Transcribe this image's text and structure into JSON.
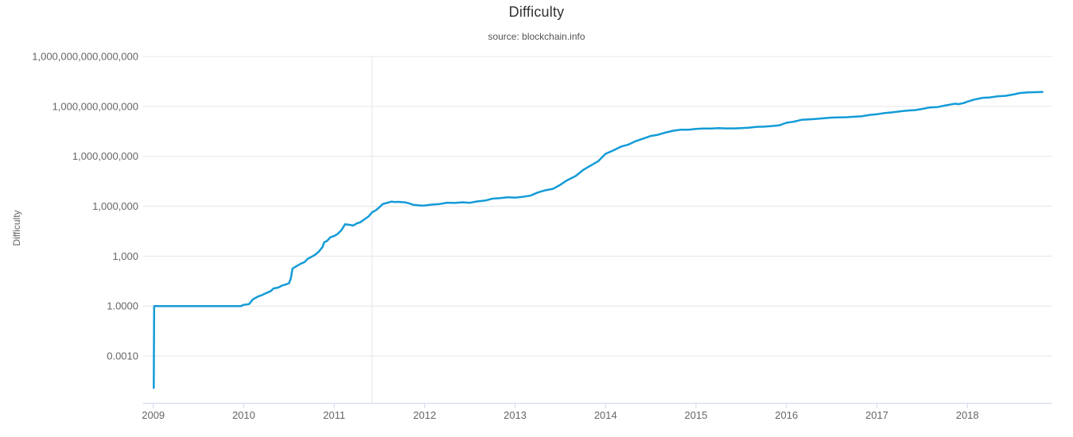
{
  "chart_data": {
    "type": "line",
    "title": "Difficulty",
    "subtitle": "source: blockchain.info",
    "xlabel": "",
    "ylabel": "Difficulty",
    "legend": "none",
    "grid": "horizontal",
    "y_scale": "log10",
    "x_range": [
      2008.89,
      2018.95
    ],
    "y_range_log10": [
      -5.8,
      15.7
    ],
    "line_color": "#149bd7",
    "axis_line_color": "#ccd6eb",
    "gridline_color": "#e6e6e6",
    "label_color": "#666666",
    "crosshair_x_year": 2011.42,
    "y_ticks": [
      {
        "value": 1000000000000000,
        "label": "1,000,000,000,000,000"
      },
      {
        "value": 1000000000000,
        "label": "1,000,000,000,000"
      },
      {
        "value": 1000000000,
        "label": "1,000,000,000"
      },
      {
        "value": 1000000,
        "label": "1,000,000"
      },
      {
        "value": 1000,
        "label": "1,000"
      },
      {
        "value": 1,
        "label": "1.0000"
      },
      {
        "value": 0.001,
        "label": "0.0010"
      }
    ],
    "x_ticks": [
      {
        "value": 2009,
        "label": "2009"
      },
      {
        "value": 2010,
        "label": "2010"
      },
      {
        "value": 2011,
        "label": "2011"
      },
      {
        "value": 2012,
        "label": "2012"
      },
      {
        "value": 2013,
        "label": "2013"
      },
      {
        "value": 2014,
        "label": "2014"
      },
      {
        "value": 2015,
        "label": "2015"
      },
      {
        "value": 2016,
        "label": "2016"
      },
      {
        "value": 2017,
        "label": "2017"
      },
      {
        "value": 2018,
        "label": "2018"
      }
    ],
    "series": [
      {
        "name": "Difficulty",
        "points": [
          [
            2009.005,
            1.2e-05
          ],
          [
            2009.01,
            1.0
          ],
          [
            2009.5,
            1.0
          ],
          [
            2009.97,
            1.0
          ],
          [
            2010.0,
            1.18
          ],
          [
            2010.06,
            1.31
          ],
          [
            2010.1,
            2.53
          ],
          [
            2010.16,
            3.78
          ],
          [
            2010.2,
            4.53
          ],
          [
            2010.25,
            6.09
          ],
          [
            2010.3,
            8.0
          ],
          [
            2010.33,
            11.46
          ],
          [
            2010.38,
            12.85
          ],
          [
            2010.42,
            16.62
          ],
          [
            2010.46,
            19.41
          ],
          [
            2010.5,
            23.5
          ],
          [
            2010.52,
            45.38
          ],
          [
            2010.54,
            181.54
          ],
          [
            2010.58,
            244.21
          ],
          [
            2010.63,
            352.17
          ],
          [
            2010.67,
            434.37
          ],
          [
            2010.71,
            712.88
          ],
          [
            2010.75,
            917.83
          ],
          [
            2010.79,
            1210.76
          ],
          [
            2010.83,
            1876.12
          ],
          [
            2010.87,
            3438.43
          ],
          [
            2010.89,
            6866.9
          ],
          [
            2010.92,
            8078.2
          ],
          [
            2010.96,
            14027.6
          ],
          [
            2011.0,
            16307.4
          ],
          [
            2011.04,
            22012.5
          ],
          [
            2011.08,
            36459.8
          ],
          [
            2011.12,
            82347.2
          ],
          [
            2011.17,
            76194.0
          ],
          [
            2011.21,
            68977.8
          ],
          [
            2011.25,
            92347.6
          ],
          [
            2011.29,
            109670.1
          ],
          [
            2011.33,
            157416.4
          ],
          [
            2011.38,
            244112.5
          ],
          [
            2011.42,
            434877.0
          ],
          [
            2011.46,
            567358.2
          ],
          [
            2011.5,
            877226.7
          ],
          [
            2011.54,
            1379192.3
          ],
          [
            2011.58,
            1564057.9
          ],
          [
            2011.63,
            1888786.7
          ],
          [
            2011.67,
            1805700.8
          ],
          [
            2011.71,
            1846028.8
          ],
          [
            2011.75,
            1755425.3
          ],
          [
            2011.79,
            1689334.4
          ],
          [
            2011.83,
            1468195.4
          ],
          [
            2011.88,
            1203902.1
          ],
          [
            2011.92,
            1159929.5
          ],
          [
            2011.96,
            1090715.7
          ],
          [
            2012.0,
            1113356.9
          ],
          [
            2012.08,
            1250757.5
          ],
          [
            2012.17,
            1376302.3
          ],
          [
            2012.25,
            1626553.5
          ],
          [
            2012.33,
            1577913.4
          ],
          [
            2012.42,
            1726566.8
          ],
          [
            2012.5,
            1620533.0
          ],
          [
            2012.58,
            1944475.5
          ],
          [
            2012.67,
            2190865.9
          ],
          [
            2012.75,
            2864140.5
          ],
          [
            2012.83,
            3054627.3
          ],
          [
            2012.92,
            3438909.0
          ],
          [
            2013.0,
            3249549.5
          ],
          [
            2013.08,
            3651011.6
          ],
          [
            2013.17,
            4367876.0
          ],
          [
            2013.25,
            6695826.2
          ],
          [
            2013.33,
            8974296.0
          ],
          [
            2013.42,
            11187257.5
          ],
          [
            2013.5,
            19339258.3
          ],
          [
            2013.58,
            37392766.1
          ],
          [
            2013.67,
            65750060.2
          ],
          [
            2013.75,
            148819199.8
          ],
          [
            2013.83,
            267731249.5
          ],
          [
            2013.92,
            510929738.0
          ],
          [
            2014.0,
            1418481395.3
          ],
          [
            2014.08,
            2193847870.2
          ],
          [
            2014.17,
            3815723799.3
          ],
          [
            2014.25,
            5006860589.1
          ],
          [
            2014.33,
            8000872135.9
          ],
          [
            2014.42,
            11756551916.9
          ],
          [
            2014.5,
            16818461371.2
          ],
          [
            2014.58,
            19729645941.0
          ],
          [
            2014.67,
            27428630902.3
          ],
          [
            2014.75,
            34661425924.3
          ],
          [
            2014.83,
            39457671307.1
          ],
          [
            2014.92,
            40007470271.3
          ],
          [
            2015.0,
            43971662056.1
          ],
          [
            2015.08,
            46684376316.9
          ],
          [
            2015.17,
            46717549644.9
          ],
          [
            2015.25,
            49692386354.9
          ],
          [
            2015.33,
            47427554950.6
          ],
          [
            2015.42,
            47589591153.6
          ],
          [
            2015.5,
            49402014931.0
          ],
          [
            2015.58,
            52278304845.6
          ],
          [
            2015.67,
            59335351233.9
          ],
          [
            2015.75,
            60813224039.4
          ],
          [
            2015.83,
            65848255179.7
          ],
          [
            2015.92,
            72722780642.5
          ],
          [
            2016.0,
            103880340815.5
          ],
          [
            2016.08,
            120033340651.2
          ],
          [
            2016.17,
            158427203767.4
          ],
          [
            2016.25,
            166851513282.7
          ],
          [
            2016.33,
            178659257772.5
          ],
          [
            2016.42,
            194254820283.4
          ],
          [
            2016.5,
            213398925331.3
          ],
          [
            2016.58,
            220755908330.5
          ],
          [
            2016.67,
            225832872179.5
          ],
          [
            2016.75,
            241227200229.9
          ],
          [
            2016.83,
            254620187304.1
          ],
          [
            2016.92,
            310153855703.2
          ],
          [
            2017.0,
            336899932795.8
          ],
          [
            2017.08,
            392963262344.4
          ],
          [
            2017.17,
            440779902286.8
          ],
          [
            2017.25,
            499635929816.6
          ],
          [
            2017.33,
            559970892890.6
          ],
          [
            2017.42,
            595921917085.4
          ],
          [
            2017.5,
            708659466230.0
          ],
          [
            2017.58,
            860221984436.2
          ],
          [
            2017.67,
            922724699725.7
          ],
          [
            2017.75,
            1123863285132.9
          ],
          [
            2017.83,
            1347001430558.6
          ],
          [
            2017.87,
            1452839779146.0
          ],
          [
            2017.9,
            1364422081125.1
          ],
          [
            2017.96,
            1590896927258.1
          ],
          [
            2018.0,
            1931136454487.4
          ],
          [
            2018.08,
            2603077300218.6
          ],
          [
            2018.17,
            3290605988755.1
          ],
          [
            2018.25,
            3462542391191.6
          ],
          [
            2018.33,
            4022059196164.9
          ],
          [
            2018.42,
            4306949573981.5
          ],
          [
            2018.5,
            5077499034879.0
          ],
          [
            2018.58,
            6389316883511.7
          ],
          [
            2018.67,
            7019199231177.9
          ],
          [
            2018.75,
            7182852049897.8
          ],
          [
            2018.83,
            7454968842151.0
          ]
        ]
      }
    ]
  }
}
